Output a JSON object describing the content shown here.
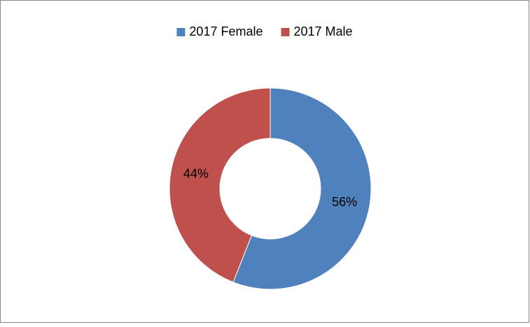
{
  "chart_data": {
    "type": "donut",
    "categories": [
      "2017 Female",
      "2017 Male"
    ],
    "values": [
      56,
      44
    ],
    "value_labels": [
      "56%",
      "44%"
    ],
    "colors": [
      "#4f81bd",
      "#c0504d"
    ],
    "legend": "top"
  }
}
